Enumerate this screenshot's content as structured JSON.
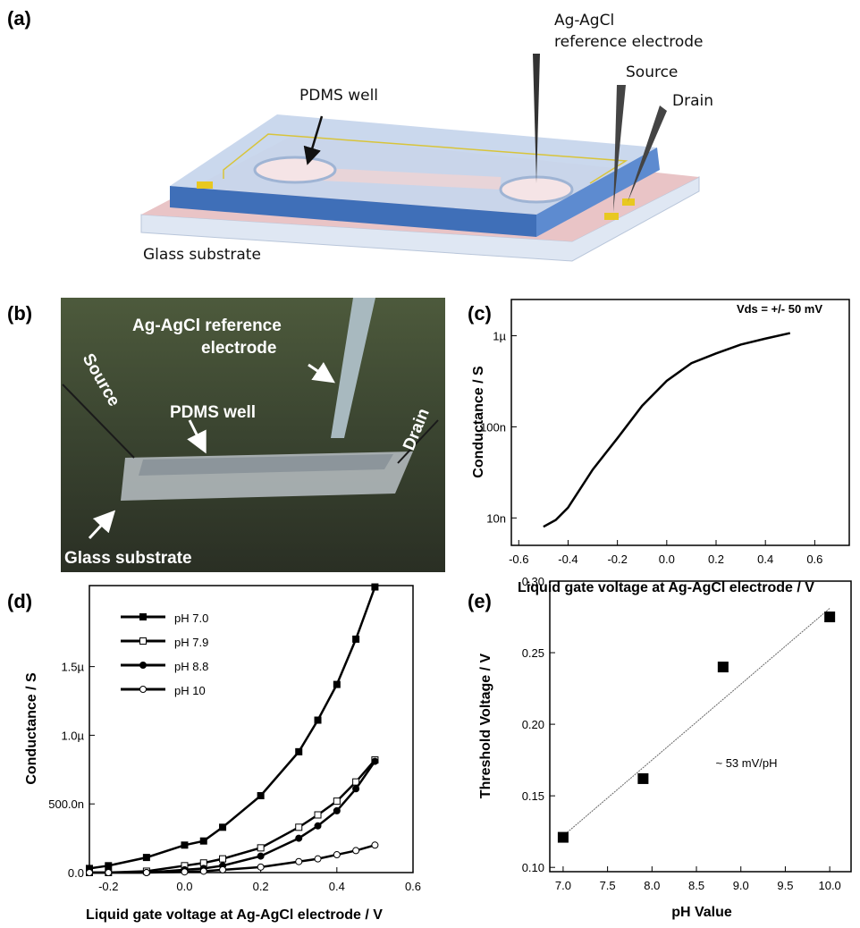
{
  "figure_a": {
    "label": "(a)",
    "pdms_well": "PDMS well",
    "reference_electrode": [
      "Ag-AgCl",
      "reference electrode"
    ],
    "source": "Source",
    "drain": "Drain",
    "glass_substrate": "Glass substrate"
  },
  "figure_b": {
    "label": "(b)",
    "reference_electrode": [
      "Ag-AgCl reference",
      "electrode"
    ],
    "source": "Source",
    "pdms_well": "PDMS well",
    "drain": "Drain",
    "glass_substrate": "Glass substrate"
  },
  "chart_data": [
    {
      "type": "line",
      "panel_label": "(c)",
      "x_label": "Liquid gate voltage at Ag-AgCl electrode / V",
      "y_label": "Conductance / S",
      "annotation": "Vds = +/- 50 mV",
      "x": [
        -0.5,
        -0.45,
        -0.4,
        -0.3,
        -0.2,
        -0.1,
        0.0,
        0.1,
        0.2,
        0.3,
        0.4,
        0.5
      ],
      "values": [
        8e-09,
        9.5e-09,
        1.3e-08,
        3.4e-08,
        7.5e-08,
        1.7e-07,
        3.2e-07,
        5e-07,
        6.4e-07,
        8e-07,
        9.3e-07,
        1.07e-06
      ],
      "color": "#000000",
      "yscale": "log",
      "xlim": [
        -0.63,
        0.74
      ],
      "xticks": [
        -0.6,
        -0.4,
        -0.2,
        {
          "value": 0,
          "label": "0.0"
        },
        0.2,
        0.4,
        0.6
      ],
      "ylim": [
        5e-09,
        2.5e-06
      ],
      "yticks": [
        {
          "value": 1e-08,
          "label": "10n"
        },
        {
          "value": 1e-07,
          "label": "100n"
        },
        {
          "value": 1e-06,
          "label": "1µ"
        }
      ]
    },
    {
      "type": "line",
      "panel_label": "(d)",
      "x_label": "Liquid gate voltage at Ag-AgCl electrode / V",
      "y_label": "Conductance / S",
      "legend": "upper left",
      "x": [
        -0.25,
        -0.2,
        -0.1,
        0.0,
        0.05,
        0.1,
        0.2,
        0.3,
        0.35,
        0.4,
        0.45,
        0.5
      ],
      "series": [
        {
          "name": "pH 7.0",
          "color": "#000000",
          "marker": "square-filled",
          "values": [
            3e-08,
            5e-08,
            1.1e-07,
            2e-07,
            2.3e-07,
            3.3e-07,
            5.6e-07,
            8.8e-07,
            1.11e-06,
            1.37e-06,
            1.7e-06,
            2.08e-06
          ]
        },
        {
          "name": "pH 7.9",
          "color": "#000000",
          "marker": "square-open",
          "values": [
            0,
            0,
            1e-08,
            5e-08,
            7e-08,
            1e-07,
            1.8e-07,
            3.3e-07,
            4.2e-07,
            5.2e-07,
            6.6e-07,
            8.2e-07
          ]
        },
        {
          "name": "pH 8.8",
          "color": "#000000",
          "marker": "circle-filled",
          "values": [
            0,
            0,
            0,
            2e-08,
            3e-08,
            5e-08,
            1.2e-07,
            2.5e-07,
            3.4e-07,
            4.5e-07,
            6.1e-07,
            8.1e-07
          ]
        },
        {
          "name": "pH 10",
          "color": "#000000",
          "marker": "circle-open",
          "values": [
            0,
            0,
            0,
            5e-09,
            1e-08,
            2e-08,
            4e-08,
            8e-08,
            1e-07,
            1.3e-07,
            1.6e-07,
            2e-07
          ]
        }
      ],
      "xlim": [
        -0.25,
        0.6
      ],
      "xticks": [
        -0.2,
        {
          "value": 0,
          "label": "0.0"
        },
        0.2,
        0.4,
        0.6
      ],
      "ylim": [
        0,
        2.09e-06
      ],
      "yticks": [
        {
          "value": 0,
          "label": "0.0"
        },
        {
          "value": 5e-07,
          "label": "500.0n"
        },
        {
          "value": 1e-06,
          "label": "1.0µ"
        },
        {
          "value": 1.5e-06,
          "label": "1.5µ"
        }
      ]
    },
    {
      "type": "scatter",
      "panel_label": "(e)",
      "x_label": "pH Value",
      "y_label": "Threshold Voltage / V",
      "annotation": "~ 53 mV/pH",
      "x": [
        7.0,
        7.9,
        8.8,
        10.0
      ],
      "values": [
        0.121,
        0.162,
        0.24,
        0.275
      ],
      "color": "#000000",
      "fit": {
        "x": [
          7.0,
          10.0
        ],
        "values": [
          0.122,
          0.281
        ],
        "color": "#666666"
      },
      "xlim": [
        6.85,
        10.24
      ],
      "xticks": [
        {
          "value": 7,
          "label": "7.0"
        },
        7.5,
        {
          "value": 8,
          "label": "8.0"
        },
        8.5,
        {
          "value": 9,
          "label": "9.0"
        },
        9.5,
        {
          "value": 10,
          "label": "10.0"
        }
      ],
      "ylim": [
        0.097,
        0.3
      ],
      "yticks": [
        {
          "value": 0.1,
          "label": "0.10"
        },
        0.15,
        {
          "value": 0.2,
          "label": "0.20"
        },
        0.25,
        {
          "value": 0.3,
          "label": "0.30"
        }
      ]
    }
  ]
}
